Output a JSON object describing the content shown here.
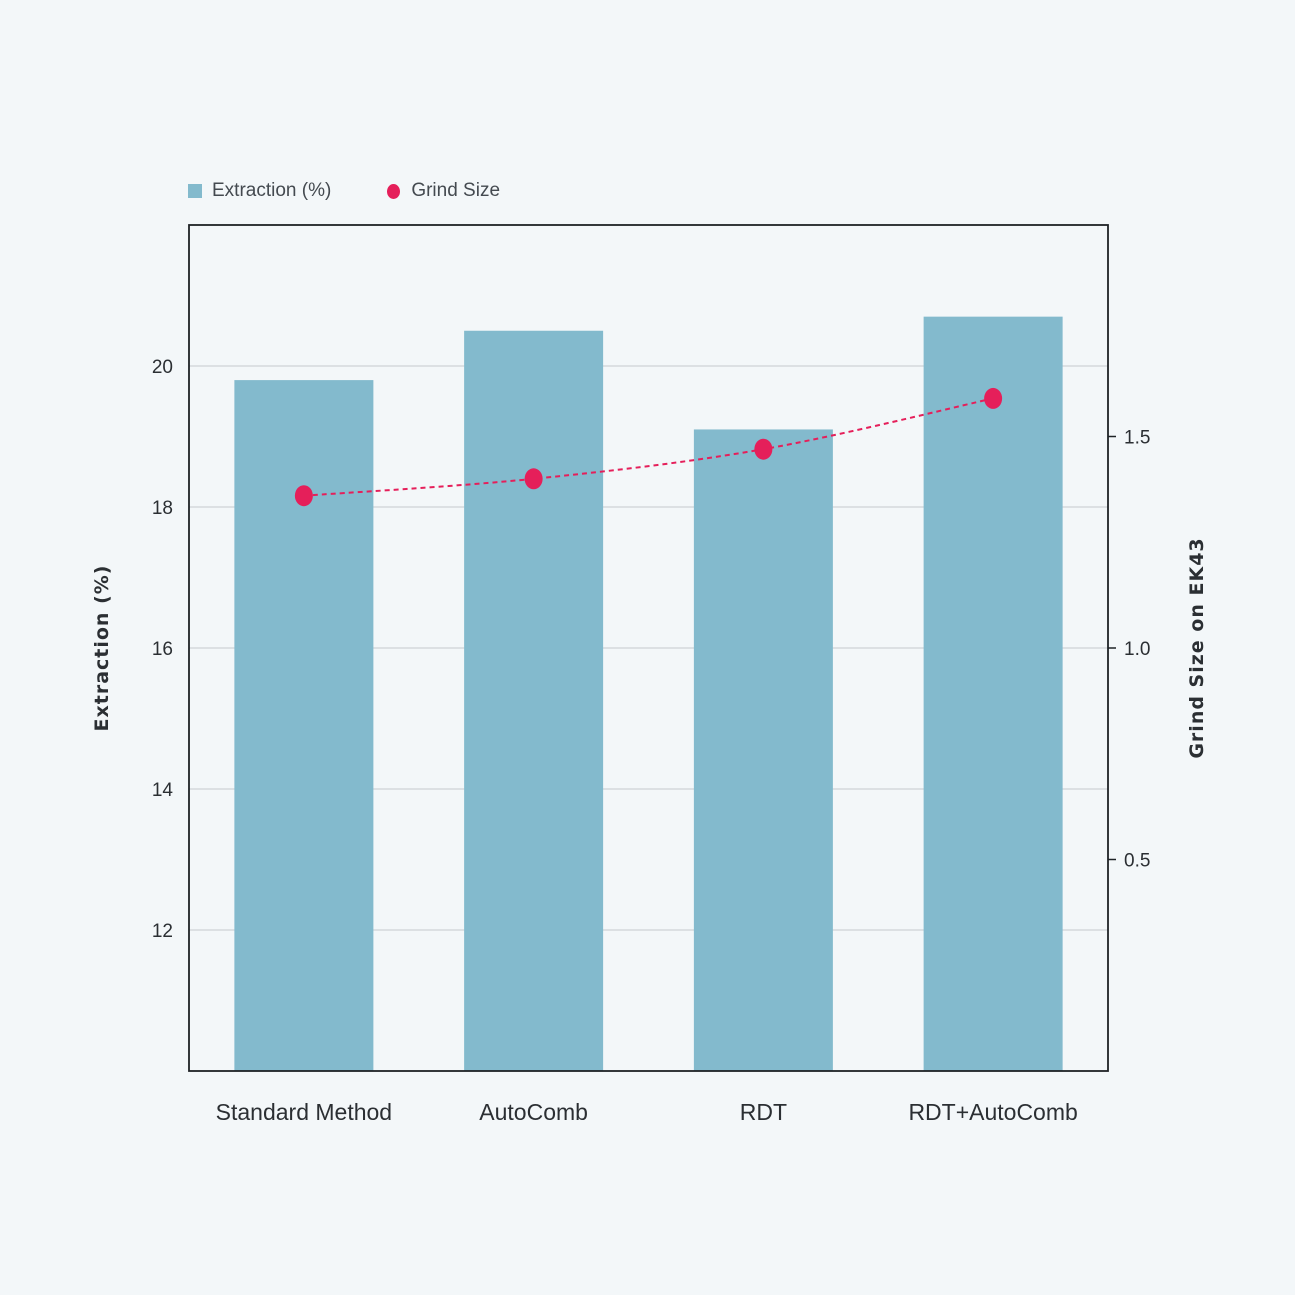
{
  "chart_data": {
    "type": "bar",
    "categories": [
      "Standard Method",
      "AutoComb",
      "RDT",
      "RDT+AutoComb"
    ],
    "series": [
      {
        "name": "Extraction (%)",
        "type": "bar",
        "axis": "left",
        "values": [
          19.8,
          20.5,
          19.1,
          20.7
        ]
      },
      {
        "name": "Grind Size",
        "type": "line",
        "axis": "right",
        "values": [
          1.36,
          1.4,
          1.47,
          1.59
        ]
      }
    ],
    "ylabel": "Extraction (%)",
    "ylabel_right": "Grind Size on EK43",
    "ylim": [
      10,
      22
    ],
    "ylim_right": [
      0,
      2.0
    ],
    "yticks": [
      12,
      14,
      16,
      18,
      20
    ],
    "yticks_right": [
      0.5,
      1.0,
      1.5
    ],
    "grid": true,
    "legend_position": "top-left",
    "colors": {
      "bar": "#83bacd",
      "line": "#e51f5a",
      "background": "#f3f7f9"
    }
  }
}
